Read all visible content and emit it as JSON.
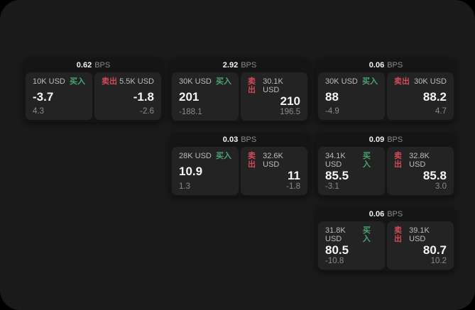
{
  "labels": {
    "bps": "BPS",
    "buy": "买入",
    "sell": "卖出"
  },
  "colors": {
    "page_bg": "#000000",
    "window_bg": "#1a1a1a",
    "card_bg": "#151515",
    "panel_bg": "#232323",
    "text_bright": "#f5f5f5",
    "text_dim": "#8a8a8a",
    "text_label": "#bdbdbd",
    "buy_green": "#46a672",
    "sell_red": "#d04b58"
  },
  "cards": [
    {
      "row": 1,
      "col": 1,
      "spread": "0.62",
      "buy": {
        "size": "10K USD",
        "price": "-3.7",
        "sub": "4.3"
      },
      "sell": {
        "size": "5.5K USD",
        "price": "-1.8",
        "sub": "-2.6"
      }
    },
    {
      "row": 1,
      "col": 2,
      "spread": "2.92",
      "buy": {
        "size": "30K USD",
        "price": "201",
        "sub": "-188.1"
      },
      "sell": {
        "size": "30.1K USD",
        "price": "210",
        "sub": "196.5"
      }
    },
    {
      "row": 1,
      "col": 3,
      "spread": "0.06",
      "buy": {
        "size": "30K USD",
        "price": "88",
        "sub": "-4.9"
      },
      "sell": {
        "size": "30K USD",
        "price": "88.2",
        "sub": "4.7"
      }
    },
    {
      "row": 2,
      "col": 2,
      "spread": "0.03",
      "buy": {
        "size": "28K USD",
        "price": "10.9",
        "sub": "1.3"
      },
      "sell": {
        "size": "32.6K USD",
        "price": "11",
        "sub": "-1.8"
      }
    },
    {
      "row": 2,
      "col": 3,
      "spread": "0.09",
      "buy": {
        "size": "34.1K USD",
        "price": "85.5",
        "sub": "-3.1"
      },
      "sell": {
        "size": "32.8K USD",
        "price": "85.8",
        "sub": "3.0"
      }
    },
    {
      "row": 3,
      "col": 3,
      "spread": "0.06",
      "buy": {
        "size": "31.8K USD",
        "price": "80.5",
        "sub": "-10.8"
      },
      "sell": {
        "size": "39.1K USD",
        "price": "80.7",
        "sub": "10.2"
      }
    }
  ]
}
